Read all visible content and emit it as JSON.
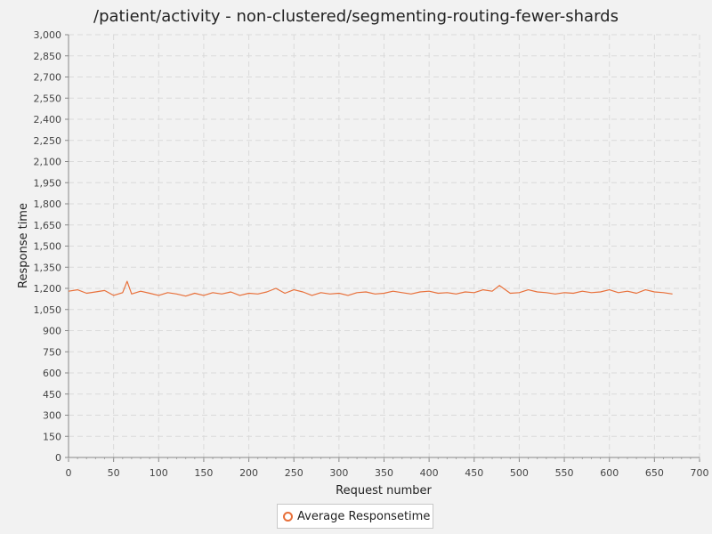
{
  "chart_data": {
    "type": "line",
    "title": "/patient/activity - non-clustered/segmenting-routing-fewer-shards",
    "xlabel": "Request number",
    "ylabel": "Response time",
    "xlim": [
      0,
      700
    ],
    "ylim": [
      0,
      3000
    ],
    "x_ticks": [
      "0",
      "50",
      "100",
      "150",
      "200",
      "250",
      "300",
      "350",
      "400",
      "450",
      "500",
      "550",
      "600",
      "650",
      "700"
    ],
    "y_ticks": [
      "0",
      "150",
      "300",
      "450",
      "600",
      "750",
      "900",
      "1,050",
      "1,200",
      "1,350",
      "1,500",
      "1,650",
      "1,800",
      "1,950",
      "2,100",
      "2,250",
      "2,400",
      "2,550",
      "2,700",
      "2,850",
      "3,000"
    ],
    "grid": true,
    "legend_position": "bottom",
    "series": [
      {
        "name": "Average Responsetime",
        "color": "#e8703a",
        "x": [
          0,
          10,
          20,
          30,
          40,
          50,
          60,
          65,
          70,
          80,
          90,
          100,
          110,
          120,
          130,
          140,
          150,
          160,
          170,
          180,
          190,
          200,
          210,
          220,
          230,
          240,
          250,
          260,
          270,
          280,
          290,
          300,
          310,
          320,
          330,
          340,
          350,
          360,
          370,
          380,
          390,
          400,
          410,
          420,
          430,
          440,
          450,
          460,
          470,
          478,
          490,
          500,
          510,
          520,
          530,
          540,
          550,
          560,
          570,
          580,
          590,
          600,
          610,
          620,
          630,
          640,
          650,
          660,
          670
        ],
        "y": [
          1180,
          1190,
          1165,
          1175,
          1185,
          1150,
          1170,
          1250,
          1160,
          1180,
          1165,
          1150,
          1170,
          1160,
          1145,
          1165,
          1150,
          1170,
          1160,
          1175,
          1150,
          1165,
          1160,
          1175,
          1200,
          1165,
          1190,
          1175,
          1150,
          1170,
          1160,
          1165,
          1150,
          1170,
          1175,
          1160,
          1165,
          1180,
          1170,
          1160,
          1175,
          1180,
          1165,
          1170,
          1160,
          1175,
          1170,
          1190,
          1180,
          1220,
          1165,
          1170,
          1190,
          1175,
          1170,
          1160,
          1170,
          1165,
          1180,
          1170,
          1175,
          1190,
          1170,
          1180,
          1165,
          1190,
          1175,
          1170,
          1160
        ]
      }
    ]
  }
}
